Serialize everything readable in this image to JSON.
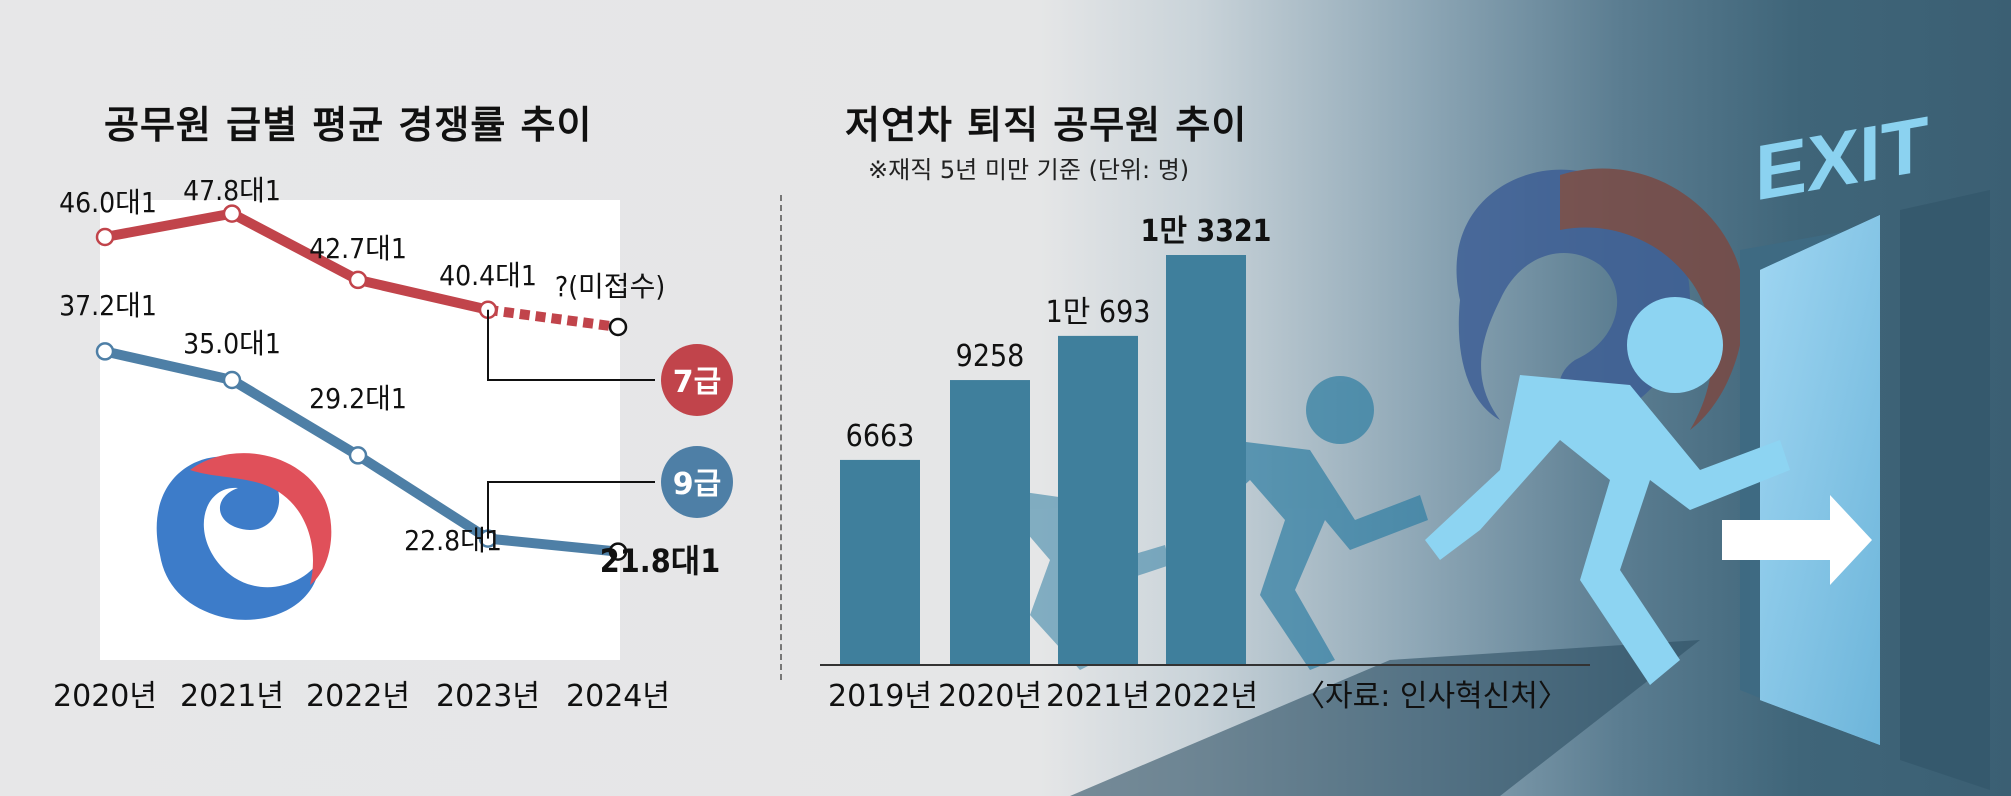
{
  "left_chart_title": "공무원 급별 평균 경쟁률 추이",
  "right_chart_title": "저연차 퇴직 공무원 추이",
  "right_chart_subtitle": "※재직 5년 미만 기준 (단위: 명)",
  "source_note": "〈자료: 인사혁신처〉",
  "exit_sign": "EXIT",
  "colors": {
    "grade7": "#c1444b",
    "grade9": "#4e7fa6",
    "bars": "#3f7f9c",
    "emblem_blue": "#3d7cc9",
    "emblem_red": "#e0505a",
    "person": "#8dd4f2"
  },
  "chart_data": [
    {
      "type": "line",
      "title": "공무원 급별 평균 경쟁률 추이",
      "categories": [
        "2020년",
        "2021년",
        "2022년",
        "2023년",
        "2024년"
      ],
      "ylim": [
        15,
        55
      ],
      "series": [
        {
          "name": "7급",
          "values": [
            46.0,
            47.8,
            42.7,
            40.4,
            null
          ],
          "labels": [
            "46.0대1",
            "47.8대1",
            "42.7대1",
            "40.4대1",
            "?(미접수)"
          ],
          "note": "?(미접수)"
        },
        {
          "name": "9급",
          "values": [
            37.2,
            35.0,
            29.2,
            22.8,
            21.8
          ],
          "labels": [
            "37.2대1",
            "35.0대1",
            "29.2대1",
            "22.8대1",
            "21.8대1"
          ]
        }
      ],
      "grid": false
    },
    {
      "type": "bar",
      "title": "저연차 퇴직 공무원 추이",
      "subtitle": "※재직 5년 미만 기준 (단위: 명)",
      "categories": [
        "2019년",
        "2020년",
        "2021년",
        "2022년"
      ],
      "values": [
        6663,
        9258,
        10693,
        13321
      ],
      "labels": [
        "6663",
        "9258",
        "1만 693",
        "1만 3321"
      ],
      "ylim": [
        0,
        13321
      ],
      "grid": false
    }
  ]
}
